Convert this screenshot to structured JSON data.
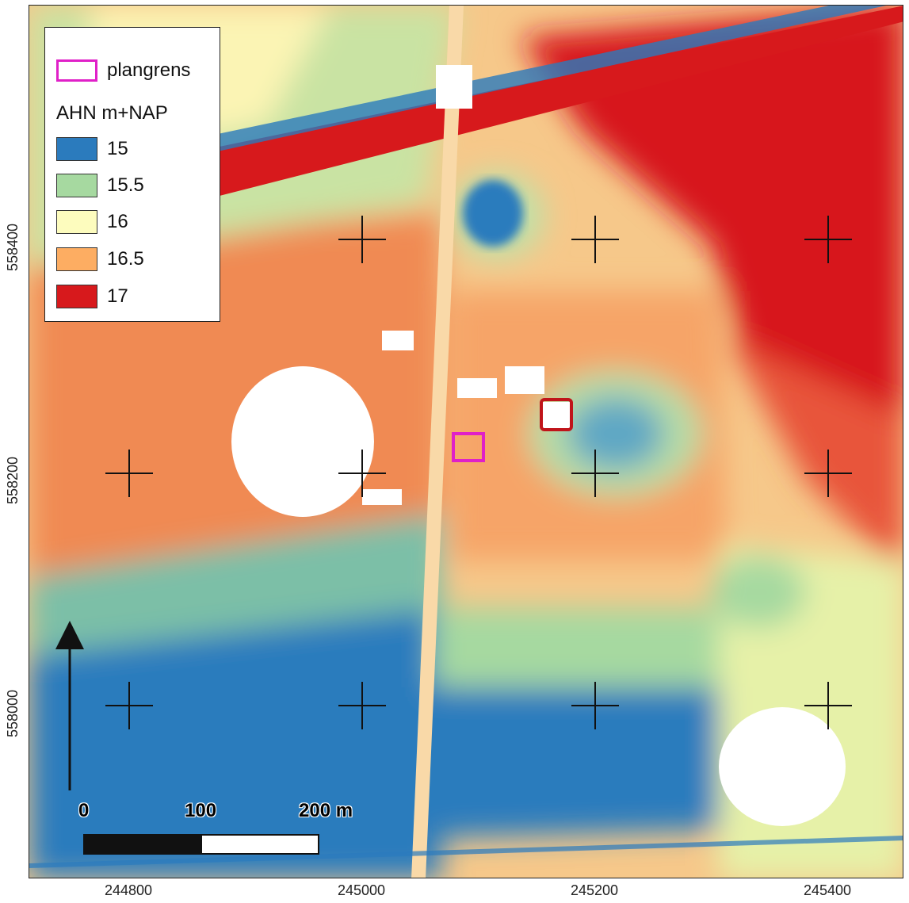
{
  "legend": {
    "boundary_label": "plangrens",
    "boundary_color": "#e020c8",
    "title": "AHN m+NAP",
    "classes": [
      {
        "label": "15",
        "color": "#2b7bbd"
      },
      {
        "label": "15.5",
        "color": "#a6d9a0"
      },
      {
        "label": "16",
        "color": "#fdfcbe"
      },
      {
        "label": "16.5",
        "color": "#fdad62"
      },
      {
        "label": "17",
        "color": "#d7191c"
      }
    ]
  },
  "axes": {
    "x_ticks": [
      "244800",
      "245000",
      "245200",
      "245400"
    ],
    "y_ticks": [
      "558400",
      "558200",
      "558000"
    ]
  },
  "scale_bar": {
    "labels": [
      "0",
      "100",
      "200 m"
    ]
  },
  "north_arrow": "north-arrow-icon"
}
